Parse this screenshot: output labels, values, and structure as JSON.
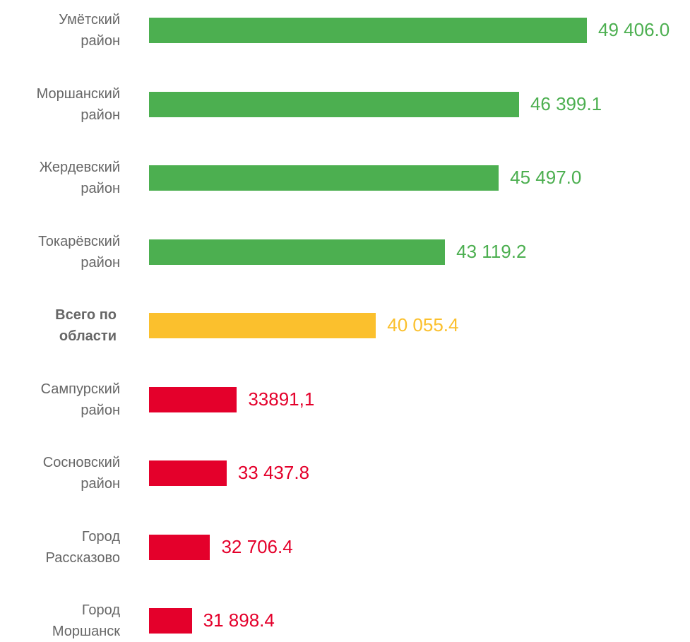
{
  "chart_data": {
    "type": "barh",
    "categories": [
      "Умётский\nрайон",
      "Моршанский\nрайон",
      "Жердевский\nрайон",
      "Токарёвский\nрайон",
      "Всего по\nобласти",
      "Сампурский\nрайон",
      "Сосновский\nрайон",
      "Город\nРассказово",
      "Город\nМоршанск"
    ],
    "values": [
      49406.0,
      46399.1,
      45497.0,
      43119.2,
      40055.4,
      33891.1,
      33437.8,
      32706.4,
      31898.4
    ],
    "value_labels": [
      "49 406.0",
      "46 399.1",
      "45 497.0",
      "43 119.2",
      "40 055.4",
      "33891,1",
      "33 437.8",
      "32 706.4",
      "31 898.4"
    ],
    "colors": [
      "#4caf50",
      "#4caf50",
      "#4caf50",
      "#4caf50",
      "#fbc02d",
      "#e4002b",
      "#e4002b",
      "#e4002b",
      "#e4002b"
    ],
    "bold_categories": [
      4
    ],
    "xlim": [
      30000,
      50000
    ]
  }
}
